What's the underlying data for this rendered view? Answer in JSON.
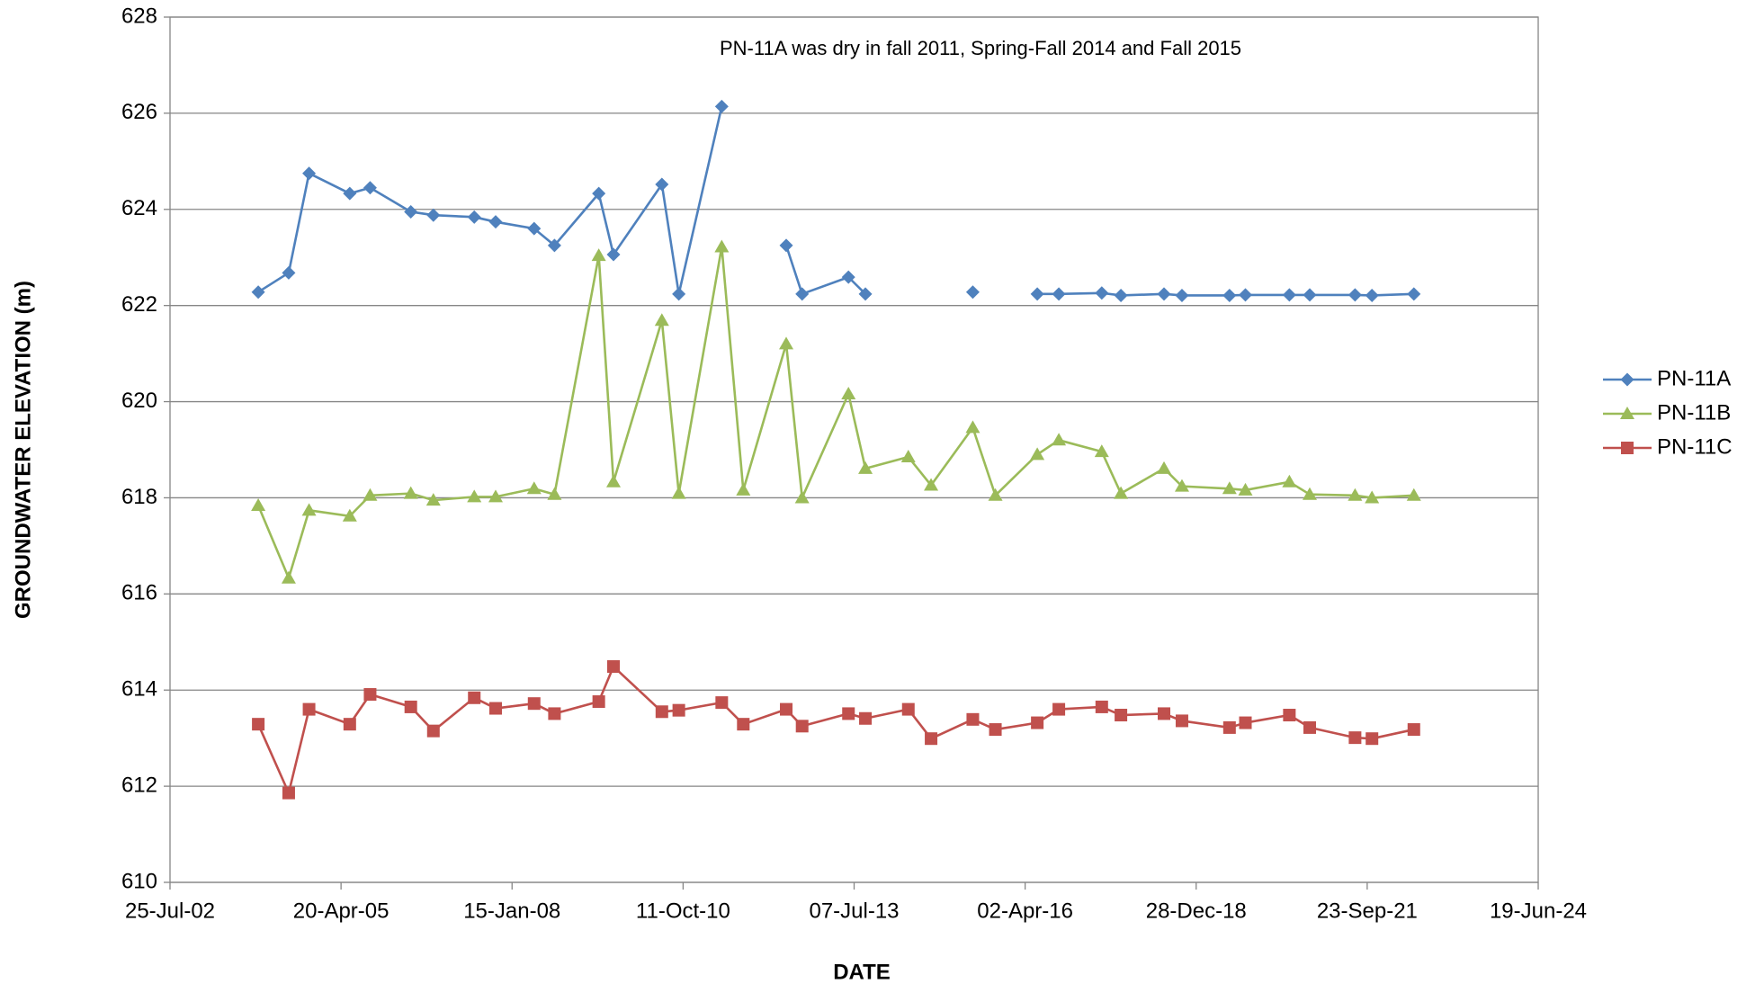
{
  "chart_data": {
    "type": "line",
    "annotation": "PN-11A was dry in fall 2011, Spring-Fall 2014 and Fall 2015",
    "x_label": "DATE",
    "y_label": "GROUNDWATER ELEVATION (m)",
    "x": [
      "2003-12-23",
      "2004-06-18",
      "2004-10-15",
      "2005-06-10",
      "2005-10-07",
      "2006-06-02",
      "2006-10-12",
      "2007-06-08",
      "2007-10-11",
      "2008-05-23",
      "2008-09-19",
      "2009-06-05",
      "2009-08-30",
      "2010-06-09",
      "2010-09-16",
      "2011-05-25",
      "2011-09-28",
      "2012-06-05",
      "2012-09-06",
      "2013-06-04",
      "2013-09-11",
      "2014-05-20",
      "2014-09-30",
      "2015-06-01",
      "2015-10-11",
      "2016-06-12",
      "2016-10-16",
      "2017-06-24",
      "2017-10-14",
      "2018-06-23",
      "2018-10-06",
      "2019-07-11",
      "2019-10-12",
      "2020-06-25",
      "2020-10-22",
      "2021-07-14",
      "2021-10-21",
      "2022-06-23"
    ],
    "series": [
      {
        "name": "PN-11A",
        "color": "#4f81bd",
        "marker": "diamond",
        "values": [
          622.28,
          622.68,
          624.75,
          624.33,
          624.45,
          623.95,
          623.88,
          623.84,
          623.74,
          623.6,
          623.25,
          624.33,
          623.06,
          624.52,
          622.24,
          626.14,
          null,
          623.25,
          622.24,
          622.59,
          622.24,
          null,
          null,
          622.28,
          null,
          622.24,
          622.24,
          622.26,
          622.21,
          622.24,
          622.21,
          622.21,
          622.22,
          622.22,
          622.22,
          622.22,
          622.21,
          622.24
        ]
      },
      {
        "name": "PN-11B",
        "color": "#9bbb59",
        "marker": "triangle",
        "values": [
          617.84,
          616.33,
          617.74,
          617.62,
          618.05,
          618.09,
          617.95,
          618.02,
          618.02,
          618.19,
          618.07,
          623.04,
          618.33,
          621.69,
          618.09,
          623.22,
          618.16,
          621.2,
          618.0,
          620.16,
          618.61,
          618.85,
          618.26,
          619.46,
          618.05,
          618.9,
          619.2,
          618.96,
          618.09,
          618.61,
          618.24,
          618.19,
          618.16,
          618.33,
          618.07,
          618.05,
          618.0,
          618.05
        ]
      },
      {
        "name": "PN-11C",
        "color": "#c0504d",
        "marker": "square",
        "values": [
          613.29,
          611.86,
          613.6,
          613.29,
          613.91,
          613.65,
          613.15,
          613.84,
          613.62,
          613.72,
          613.51,
          613.76,
          614.49,
          613.55,
          613.58,
          613.74,
          613.29,
          613.6,
          613.25,
          613.51,
          613.41,
          613.6,
          612.99,
          613.39,
          613.18,
          613.32,
          613.6,
          613.65,
          613.48,
          613.51,
          613.36,
          613.22,
          613.32,
          613.48,
          613.22,
          613.01,
          612.99,
          613.18
        ]
      }
    ],
    "xlim": [
      "2002-07-25",
      "2024-06-19"
    ],
    "xticks": [
      {
        "value": "2002-07-25",
        "label": "25-Jul-02"
      },
      {
        "value": "2005-04-20",
        "label": "20-Apr-05"
      },
      {
        "value": "2008-01-15",
        "label": "15-Jan-08"
      },
      {
        "value": "2010-10-11",
        "label": "11-Oct-10"
      },
      {
        "value": "2013-07-07",
        "label": "07-Jul-13"
      },
      {
        "value": "2016-04-02",
        "label": "02-Apr-16"
      },
      {
        "value": "2018-12-28",
        "label": "28-Dec-18"
      },
      {
        "value": "2021-09-23",
        "label": "23-Sep-21"
      },
      {
        "value": "2024-06-19",
        "label": "19-Jun-24"
      }
    ],
    "ylim": [
      610,
      628
    ],
    "yticks": [
      610,
      612,
      614,
      616,
      618,
      620,
      622,
      624,
      626,
      628
    ],
    "grid": true,
    "legend": "right"
  }
}
